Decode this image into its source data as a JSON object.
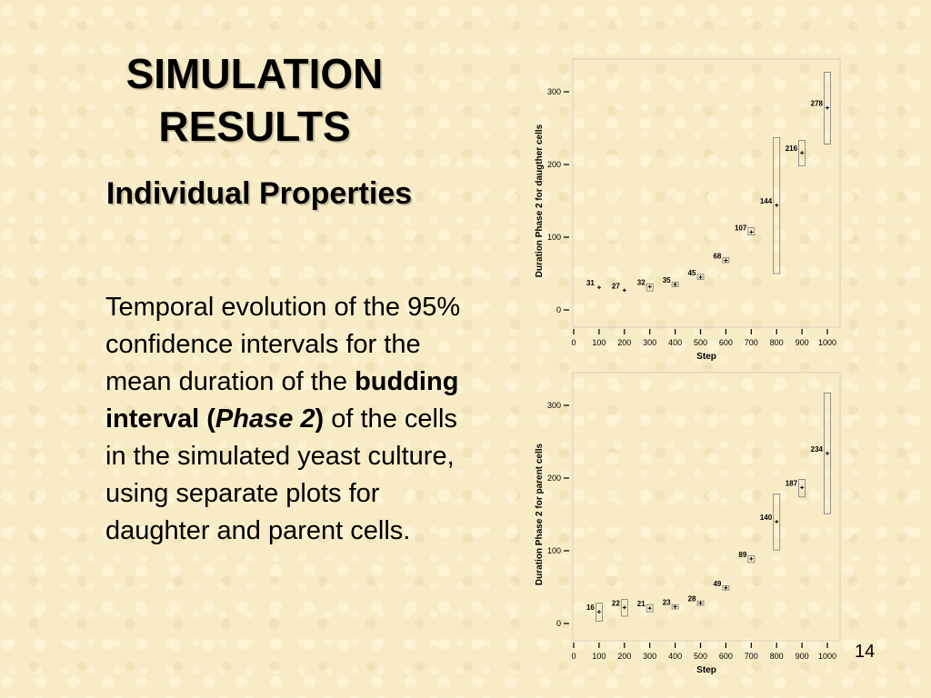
{
  "slide": {
    "title_line1": "SIMULATION",
    "title_line2": "RESULTS",
    "subtitle": "Individual Properties",
    "text_part1": "Temporal evolution of the 95% confidence intervals for the mean duration of the ",
    "text_bold": "budding interval",
    "text_paren_open": " (",
    "text_italic": "Phase 2",
    "text_paren_close": ")",
    "text_part2": " of the cells in the simulated yeast culture, using separate plots for daughter and parent cells.",
    "page_number": "14"
  },
  "chart_data": [
    {
      "type": "scatter",
      "title": "",
      "xlabel": "Step",
      "ylabel": "Duration Phase 2 for daugther cells",
      "xlim": [
        0,
        1000
      ],
      "ylim": [
        0,
        300
      ],
      "x_ticks": [
        "0",
        "100",
        "200",
        "300",
        "400",
        "500",
        "600",
        "700",
        "800",
        "900",
        "1000"
      ],
      "y_ticks": [
        "0",
        "100",
        "200",
        "300"
      ],
      "points": [
        {
          "x": 100,
          "mean": 31,
          "lo": 31,
          "hi": 31,
          "label": "31"
        },
        {
          "x": 200,
          "mean": 27,
          "lo": 27,
          "hi": 27,
          "label": "27"
        },
        {
          "x": 300,
          "mean": 32,
          "lo": 26,
          "hi": 36,
          "label": "32"
        },
        {
          "x": 400,
          "mean": 35,
          "lo": 32,
          "hi": 38,
          "label": "35"
        },
        {
          "x": 500,
          "mean": 45,
          "lo": 42,
          "hi": 49,
          "label": "45"
        },
        {
          "x": 600,
          "mean": 68,
          "lo": 65,
          "hi": 72,
          "label": "68"
        },
        {
          "x": 700,
          "mean": 107,
          "lo": 103,
          "hi": 113,
          "label": "107"
        },
        {
          "x": 800,
          "mean": 144,
          "lo": 50,
          "hi": 237,
          "label": "144"
        },
        {
          "x": 900,
          "mean": 216,
          "lo": 198,
          "hi": 233,
          "label": "216"
        },
        {
          "x": 1000,
          "mean": 278,
          "lo": 228,
          "hi": 327,
          "label": "278"
        }
      ]
    },
    {
      "type": "scatter",
      "title": "",
      "xlabel": "Step",
      "ylabel": "Duration Phase 2 for parent cells",
      "xlim": [
        0,
        1000
      ],
      "ylim": [
        0,
        300
      ],
      "x_ticks": [
        "0",
        "100",
        "200",
        "300",
        "400",
        "500",
        "600",
        "700",
        "800",
        "900",
        "1000"
      ],
      "y_ticks": [
        "0",
        "100",
        "200",
        "300"
      ],
      "points": [
        {
          "x": 100,
          "mean": 16,
          "lo": 3,
          "hi": 28,
          "label": "16"
        },
        {
          "x": 200,
          "mean": 22,
          "lo": 10,
          "hi": 33,
          "label": "22"
        },
        {
          "x": 300,
          "mean": 21,
          "lo": 16,
          "hi": 26,
          "label": "21"
        },
        {
          "x": 400,
          "mean": 23,
          "lo": 20,
          "hi": 26,
          "label": "23"
        },
        {
          "x": 500,
          "mean": 28,
          "lo": 25,
          "hi": 31,
          "label": "28"
        },
        {
          "x": 600,
          "mean": 49,
          "lo": 46,
          "hi": 52,
          "label": "49"
        },
        {
          "x": 700,
          "mean": 89,
          "lo": 84,
          "hi": 93,
          "label": "89"
        },
        {
          "x": 800,
          "mean": 140,
          "lo": 101,
          "hi": 178,
          "label": "140"
        },
        {
          "x": 900,
          "mean": 187,
          "lo": 174,
          "hi": 198,
          "label": "187"
        },
        {
          "x": 1000,
          "mean": 234,
          "lo": 151,
          "hi": 317,
          "label": "234"
        }
      ]
    }
  ]
}
